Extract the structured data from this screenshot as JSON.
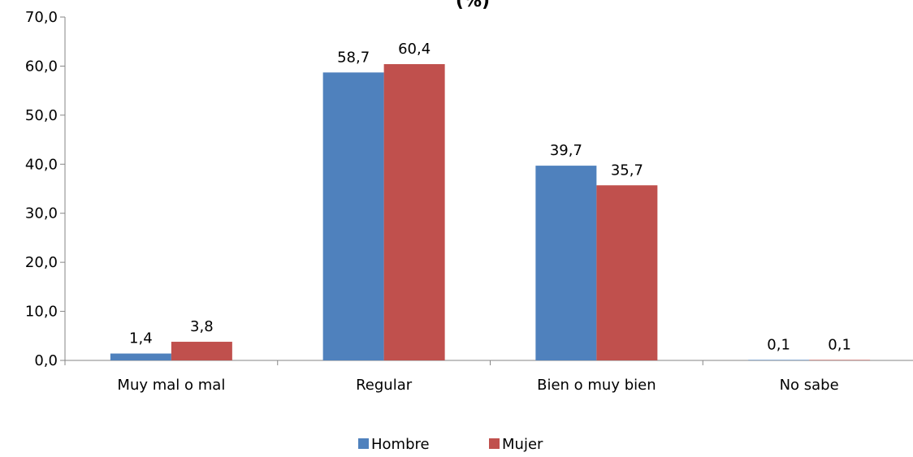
{
  "chart_data": {
    "type": "bar",
    "title": "(%)",
    "categories": [
      "Muy mal o mal",
      "Regular",
      "Bien o muy bien",
      "No sabe"
    ],
    "series": [
      {
        "name": "Hombre",
        "color": "#4F81BD",
        "values": [
          1.4,
          58.7,
          39.7,
          0.1
        ],
        "labels": [
          "1,4",
          "58,7",
          "39,7",
          "0,1"
        ]
      },
      {
        "name": "Mujer",
        "color": "#C0504D",
        "values": [
          3.8,
          60.4,
          35.7,
          0.1
        ],
        "labels": [
          "3,8",
          "60,4",
          "35,7",
          "0,1"
        ]
      }
    ],
    "ylim": [
      0,
      70
    ],
    "yticks": [
      0,
      10,
      20,
      30,
      40,
      50,
      60,
      70
    ],
    "ytick_labels": [
      "0,0",
      "10,0",
      "20,0",
      "30,0",
      "40,0",
      "50,0",
      "60,0",
      "70,0"
    ],
    "xlabel": "",
    "ylabel": "",
    "grid": false,
    "legend": "bottom"
  }
}
